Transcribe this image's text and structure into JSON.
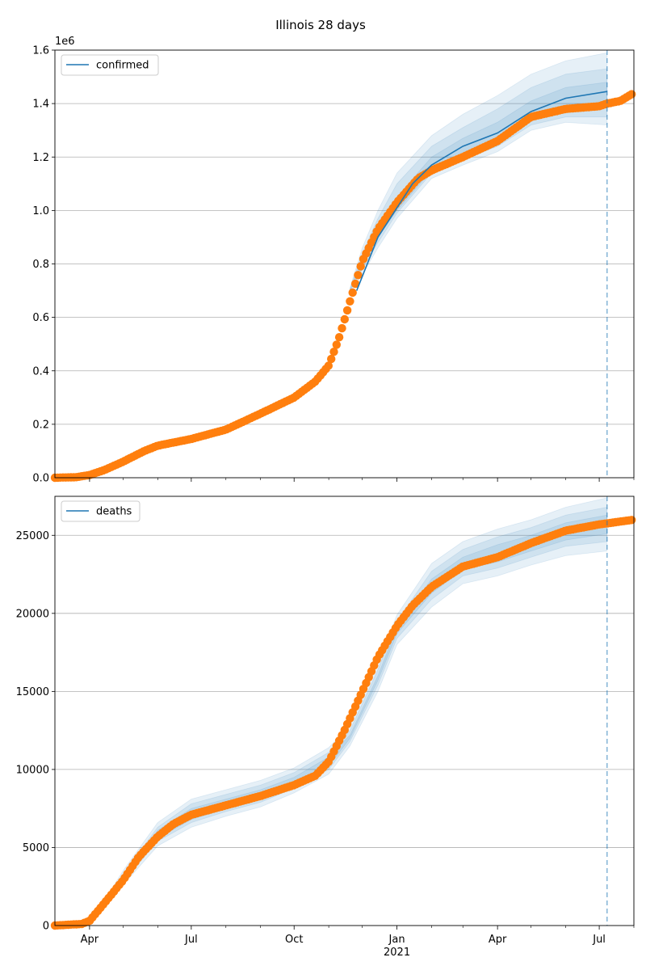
{
  "figure": {
    "title": "Illinois 28 days"
  },
  "colors": {
    "model": "#1f77b4",
    "observed": "#ff7f0e",
    "band": "#1f77b4",
    "grid": "#b0b0b0",
    "forecast_start": "#1f77b4"
  },
  "chart_data": [
    {
      "type": "line",
      "name": "confirmed",
      "legend_entries": [
        "confirmed"
      ],
      "legend_position": "upper-left",
      "grid": "horizontal",
      "y_offset_label": "1e6",
      "xlim": [
        "2020-03-01",
        "2021-08-01"
      ],
      "ylim": [
        0,
        1.6
      ],
      "y_ticks": [
        0.0,
        0.2,
        0.4,
        0.6,
        0.8,
        1.0,
        1.2,
        1.4,
        1.6
      ],
      "y_tick_labels": [
        "0.0",
        "0.2",
        "0.4",
        "0.6",
        "0.8",
        "1.0",
        "1.2",
        "1.4",
        "1.6"
      ],
      "forecast_start": "2021-07-08",
      "model_x": [
        "2020-11-26",
        "2020-12-15",
        "2021-01-01",
        "2021-01-15",
        "2021-02-01",
        "2021-03-01",
        "2021-04-01",
        "2021-05-01",
        "2021-06-01",
        "2021-07-08"
      ],
      "model_y": [
        0.7,
        0.9,
        1.01,
        1.1,
        1.17,
        1.24,
        1.29,
        1.37,
        1.42,
        1.445
      ],
      "band_x": [
        "2020-11-20",
        "2020-12-01",
        "2020-12-15",
        "2021-01-01",
        "2021-02-01",
        "2021-03-01",
        "2021-04-01",
        "2021-05-01",
        "2021-06-01",
        "2021-07-08"
      ],
      "bands": [
        {
          "lower": [
            0.69,
            0.76,
            0.86,
            0.97,
            1.12,
            1.17,
            1.22,
            1.3,
            1.33,
            1.32
          ],
          "upper": [
            0.71,
            0.86,
            1.0,
            1.14,
            1.28,
            1.36,
            1.43,
            1.51,
            1.56,
            1.59
          ]
        },
        {
          "lower": [
            0.695,
            0.78,
            0.88,
            0.99,
            1.14,
            1.19,
            1.24,
            1.32,
            1.35,
            1.35
          ],
          "upper": [
            0.705,
            0.84,
            0.97,
            1.1,
            1.24,
            1.31,
            1.38,
            1.46,
            1.51,
            1.53
          ]
        },
        {
          "lower": [
            0.698,
            0.8,
            0.9,
            1.0,
            1.15,
            1.21,
            1.26,
            1.34,
            1.38,
            1.39
          ],
          "upper": [
            0.702,
            0.82,
            0.93,
            1.05,
            1.2,
            1.27,
            1.33,
            1.41,
            1.46,
            1.48
          ]
        }
      ],
      "observed_x": [
        "2020-03-01",
        "2020-03-20",
        "2020-04-01",
        "2020-04-15",
        "2020-05-01",
        "2020-05-20",
        "2020-06-01",
        "2020-07-01",
        "2020-08-01",
        "2020-09-01",
        "2020-10-01",
        "2020-10-20",
        "2020-11-01",
        "2020-11-10",
        "2020-11-20",
        "2020-12-01",
        "2020-12-15",
        "2021-01-01",
        "2021-01-20",
        "2021-02-01",
        "2021-03-01",
        "2021-04-01",
        "2021-05-01",
        "2021-06-01",
        "2021-07-01",
        "2021-07-08",
        "2021-07-20",
        "2021-08-01"
      ],
      "observed_y": [
        0.0,
        0.002,
        0.01,
        0.03,
        0.06,
        0.1,
        0.12,
        0.145,
        0.18,
        0.24,
        0.3,
        0.36,
        0.42,
        0.52,
        0.66,
        0.81,
        0.93,
        1.03,
        1.12,
        1.15,
        1.2,
        1.26,
        1.35,
        1.38,
        1.39,
        1.4,
        1.41,
        1.44
      ]
    },
    {
      "type": "line",
      "name": "deaths",
      "legend_entries": [
        "deaths"
      ],
      "legend_position": "upper-left",
      "grid": "horizontal",
      "xlim": [
        "2020-03-01",
        "2021-08-01"
      ],
      "ylim": [
        0,
        27500
      ],
      "y_ticks": [
        0,
        5000,
        10000,
        15000,
        20000,
        25000
      ],
      "y_tick_labels": [
        "0",
        "5000",
        "10000",
        "15000",
        "20000",
        "25000"
      ],
      "x_ticks": [
        "2020-04-01",
        "2020-07-01",
        "2020-10-01",
        "2021-01-01",
        "2021-04-01",
        "2021-07-01"
      ],
      "x_tick_labels": [
        "Apr",
        "Jul",
        "Oct",
        "Jan",
        "Apr",
        "Jul"
      ],
      "x_year_label": "2021",
      "x_minor_ticks": [
        "2020-05-01",
        "2020-06-01",
        "2020-08-01",
        "2020-09-01",
        "2020-11-01",
        "2020-12-01",
        "2021-02-01",
        "2021-03-01",
        "2021-05-01",
        "2021-06-01",
        "2021-08-01"
      ],
      "forecast_start": "2021-07-08",
      "band_x": [
        "2020-04-15",
        "2020-05-01",
        "2020-06-01",
        "2020-07-01",
        "2020-08-01",
        "2020-09-01",
        "2020-10-01",
        "2020-11-01",
        "2020-11-20",
        "2020-12-15",
        "2021-01-01",
        "2021-02-01",
        "2021-03-01",
        "2021-04-01",
        "2021-05-01",
        "2021-06-01",
        "2021-07-08"
      ],
      "bands": [
        {
          "lower": [
            1300,
            2600,
            5100,
            6300,
            7000,
            7600,
            8500,
            9700,
            11500,
            15000,
            18000,
            20400,
            21900,
            22400,
            23100,
            23700,
            24000
          ],
          "upper": [
            1700,
            3500,
            6600,
            8100,
            8700,
            9300,
            10100,
            11400,
            12800,
            16800,
            19900,
            23200,
            24600,
            25400,
            26000,
            26800,
            27400
          ]
        },
        {
          "lower": [
            1400,
            2800,
            5400,
            6600,
            7300,
            7900,
            8800,
            10000,
            11800,
            15400,
            18400,
            20900,
            22400,
            22900,
            23600,
            24300,
            24600
          ],
          "upper": [
            1600,
            3300,
            6300,
            7800,
            8400,
            9000,
            9800,
            11100,
            12500,
            16400,
            19500,
            22700,
            24100,
            24900,
            25500,
            26300,
            26800
          ]
        },
        {
          "lower": [
            1450,
            2900,
            5600,
            6800,
            7500,
            8100,
            9000,
            10200,
            12000,
            15700,
            18700,
            21300,
            22800,
            23300,
            24000,
            24700,
            25100
          ],
          "upper": [
            1550,
            3100,
            6100,
            7500,
            8100,
            8700,
            9500,
            10800,
            12200,
            16000,
            19100,
            22200,
            23600,
            24400,
            25000,
            25800,
            26300
          ]
        }
      ],
      "observed_x": [
        "2020-03-01",
        "2020-03-25",
        "2020-04-01",
        "2020-04-15",
        "2020-05-01",
        "2020-05-15",
        "2020-06-01",
        "2020-06-15",
        "2020-07-01",
        "2020-08-01",
        "2020-09-01",
        "2020-10-01",
        "2020-10-20",
        "2020-11-01",
        "2020-11-15",
        "2020-12-01",
        "2020-12-15",
        "2021-01-01",
        "2021-01-15",
        "2021-02-01",
        "2021-03-01",
        "2021-04-01",
        "2021-05-01",
        "2021-06-01",
        "2021-07-01",
        "2021-08-01"
      ],
      "observed_y": [
        0,
        100,
        300,
        1500,
        2900,
        4400,
        5700,
        6500,
        7100,
        7700,
        8300,
        9000,
        9600,
        10500,
        12500,
        15000,
        17200,
        19200,
        20500,
        21700,
        23000,
        23600,
        24500,
        25300,
        25700,
        26000
      ]
    }
  ]
}
